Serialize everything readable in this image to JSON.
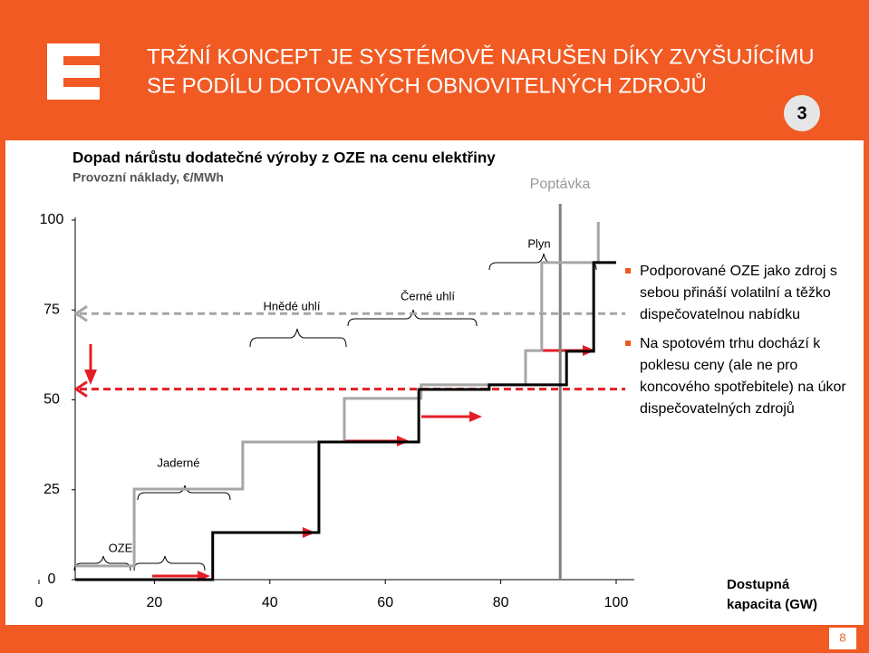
{
  "header": {
    "title_lines": [
      "TRŽNÍ KONCEPT JE SYSTÉMOVĚ NARUŠEN DÍKY ZVYŠUJÍCÍMU",
      "SE PODÍLU DOTOVANÝCH OBNOVITELNÝCH ZDROJŮ"
    ],
    "badge": "3"
  },
  "chart_data": {
    "type": "step",
    "title": "Dopad nárůstu dodatečné výroby z OZE na cenu elektřiny",
    "subtitle": "Provozní náklady, €/MWh",
    "x_label": [
      "Dostupná",
      "kapacita (GW)"
    ],
    "xlim": [
      0,
      100
    ],
    "ylim": [
      0,
      100
    ],
    "xticks": [
      0,
      20,
      40,
      60,
      80,
      100
    ],
    "yticks": [
      0,
      25,
      50,
      75,
      100
    ],
    "series": [
      {
        "color": "#a6a6a6",
        "x": [
          6.3,
          16.5,
          16.5,
          35.3,
          35.3,
          52.9,
          52.9,
          66.2,
          66.2,
          84.3,
          84.3,
          87.1,
          87.1,
          96.9,
          96.9
        ],
        "values": [
          3.8,
          3.8,
          25.2,
          25.2,
          38.3,
          38.3,
          50.4,
          50.4,
          54.2,
          54.2,
          63.7,
          63.7,
          88.2,
          88.2,
          99.5
        ]
      },
      {
        "color": "#000000",
        "x": [
          6.3,
          30.1,
          30.1,
          48.5,
          48.5,
          65.8,
          65.8,
          78.0,
          78.0,
          91.4,
          91.4,
          96.1,
          96.1,
          100
        ],
        "values": [
          0,
          0,
          13.1,
          13.1,
          38.3,
          38.3,
          52.9,
          52.9,
          54.2,
          54.2,
          63.5,
          63.5,
          88.2,
          88.2
        ]
      }
    ],
    "price_lines": [
      {
        "value": 74,
        "color": "#a6a6a6"
      },
      {
        "value": 53,
        "color": "#e41e26"
      }
    ],
    "demand_x": 90.3,
    "annotations": [
      "Poptávka",
      "Plyn",
      "Černé uhlí",
      "Hnědé uhlí",
      "Jaderné",
      "OZE"
    ]
  },
  "bullets": [
    "Podporované OZE jako zdroj s sebou přináší volatilní a těžko dispečovatelnou nabídku",
    "Na spotovém trhu dochází k poklesu ceny (ale ne pro koncového spotřebitele) na úkor dispečovatelných zdrojů"
  ],
  "page_number": "8"
}
